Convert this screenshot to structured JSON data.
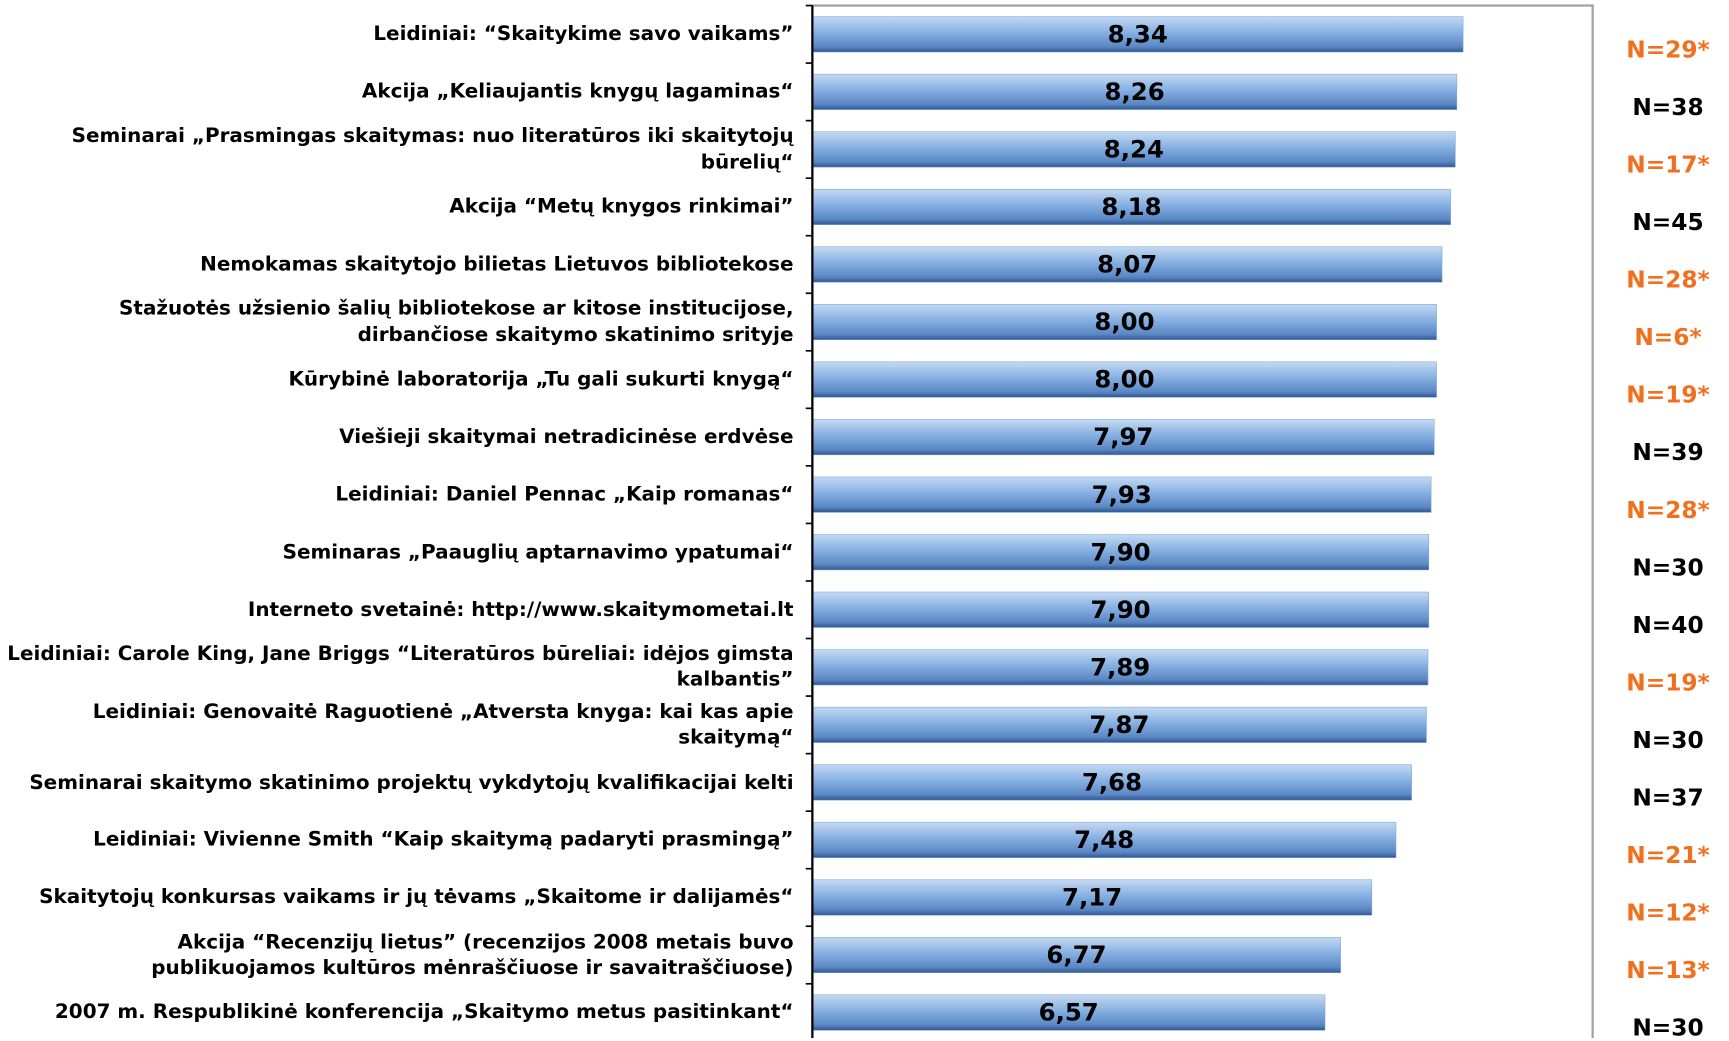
{
  "chart_data": {
    "type": "bar",
    "orientation": "horizontal",
    "categories": [
      "Leidiniai: “Skaitykime savo vaikams”",
      "Akcija „Keliaujantis knygų lagaminas“",
      "Seminarai „Prasmingas skaitymas: nuo literatūros iki skaitytojų būrelių“",
      "Akcija “Metų knygos rinkimai”",
      "Nemokamas skaitytojo bilietas Lietuvos bibliotekose",
      "Stažuotės užsienio šalių bibliotekose ar kitose institucijose, dirbančiose skaitymo skatinimo srityje",
      "Kūrybinė laboratorija „Tu gali sukurti knygą“",
      "Viešieji skaitymai netradicinėse erdvėse",
      "Leidiniai: Daniel Pennac „Kaip romanas“",
      "Seminaras „Paauglių aptarnavimo ypatumai“",
      "Interneto svetainė: http://www.skaitymometai.lt",
      "Leidiniai: Carole King, Jane Briggs “Literatūros būreliai: idėjos gimsta kalbantis”",
      "Leidiniai: Genovaitė Raguotienė „Atversta knyga: kai kas apie skaitymą“",
      "Seminarai skaitymo skatinimo projektų vykdytojų kvalifikacijai kelti",
      "Leidiniai: Vivienne Smith “Kaip skaitymą padaryti prasmingą”",
      "Skaitytojų konkursas vaikams ir jų tėvams „Skaitome ir dalijamės“",
      "Akcija “Recenzijų lietus” (recenzijos 2008 metais buvo publikuojamos kultūros mėnraščiuose ir savaitraščiuose)",
      "2007 m. Respublikinė konferencija „Skaitymo metus pasitinkant“"
    ],
    "values": [
      8.34,
      8.26,
      8.24,
      8.18,
      8.07,
      8.0,
      8.0,
      7.97,
      7.93,
      7.9,
      7.9,
      7.89,
      7.87,
      7.68,
      7.48,
      7.17,
      6.77,
      6.57
    ],
    "value_labels": [
      "8,34",
      "8,26",
      "8,24",
      "8,18",
      "8,07",
      "8,00",
      "8,00",
      "7,97",
      "7,93",
      "7,90",
      "7,90",
      "7,89",
      "7,87",
      "7,68",
      "7,48",
      "7,17",
      "6,77",
      "6,57"
    ],
    "n_labels": [
      "N=29*",
      "N=38",
      "N=17*",
      "N=45",
      "N=28*",
      "N=6*",
      "N=19*",
      "N=39",
      "N=28*",
      "N=30",
      "N=40",
      "N=19*",
      "N=30",
      "N=37",
      "N=21*",
      "N=12*",
      "N=13*",
      "N=30"
    ],
    "n_label_colors": [
      "#f07020",
      "#000000",
      "#f07020",
      "#000000",
      "#f07020",
      "#f07020",
      "#f07020",
      "#000000",
      "#f07020",
      "#000000",
      "#000000",
      "#f07020",
      "#000000",
      "#000000",
      "#f07020",
      "#f07020",
      "#f07020",
      "#000000"
    ],
    "color": "#7aa6dc",
    "xlim": [
      0,
      10
    ]
  }
}
